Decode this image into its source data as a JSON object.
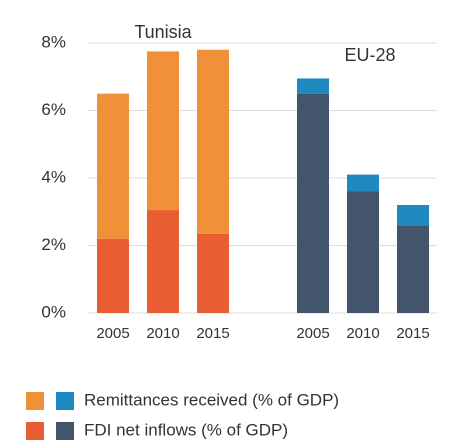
{
  "chart_data": {
    "type": "bar",
    "stacked": true,
    "groups": [
      {
        "name": "Tunisia",
        "color": "#f0913a",
        "categories": [
          "2005",
          "2010",
          "2015"
        ]
      },
      {
        "name": "EU-28",
        "color": "#2b5279",
        "categories": [
          "2005",
          "2010",
          "2015"
        ]
      }
    ],
    "series": [
      {
        "name": "FDI net inflows (% of GDP)",
        "colors": [
          "#e85d32",
          "#44546a"
        ],
        "values": [
          [
            2.2,
            3.05,
            2.35
          ],
          [
            6.5,
            3.6,
            2.6
          ]
        ]
      },
      {
        "name": "Remittances received (% of GDP)",
        "colors": [
          "#f0913a",
          "#1f8ac0"
        ],
        "values": [
          [
            4.3,
            4.7,
            5.45
          ],
          [
            0.45,
            0.5,
            0.6
          ]
        ]
      }
    ],
    "ylim": [
      0,
      8
    ],
    "yticks": [
      {
        "value": 0,
        "label": "0%"
      },
      {
        "value": 2,
        "label": "2%"
      },
      {
        "value": 4,
        "label": "4%"
      },
      {
        "value": 6,
        "label": "6%"
      },
      {
        "value": 8,
        "label": "8%"
      }
    ],
    "grid": true
  }
}
